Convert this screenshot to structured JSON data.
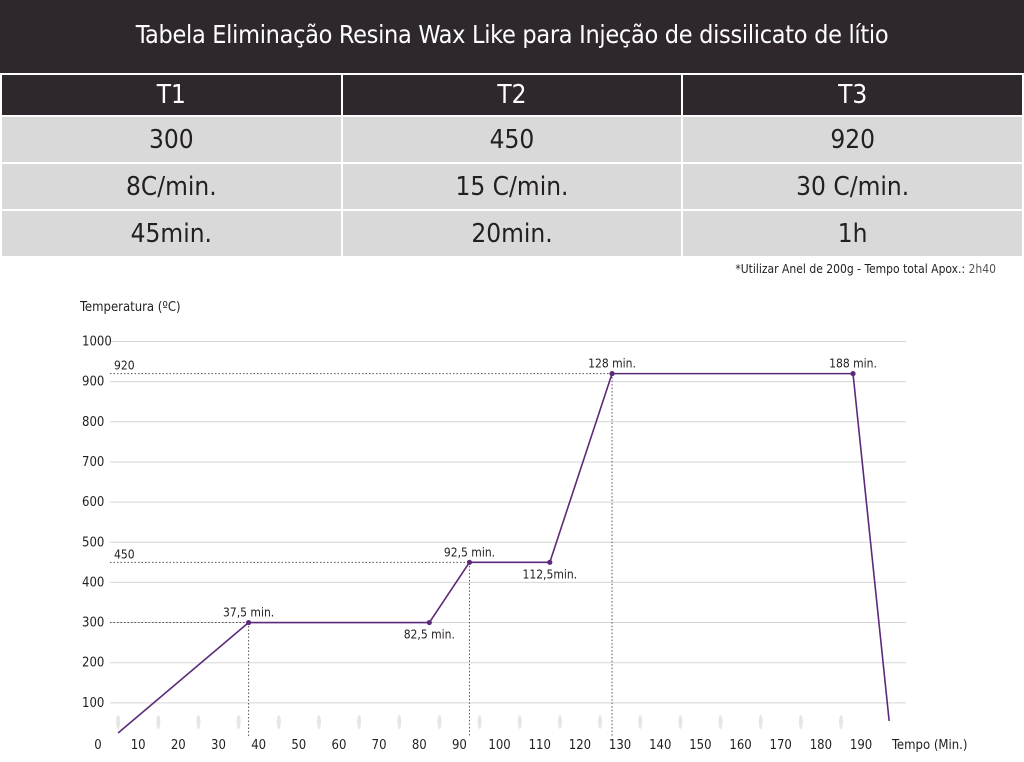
{
  "title": "Tabela Eliminação Resina Wax Like para Injeção de dissilicato de lítio",
  "table": {
    "headers": [
      "T1",
      "T2",
      "T3"
    ],
    "rows": [
      [
        "300",
        "450",
        "920"
      ],
      [
        "8C/min.",
        "15 C/min.",
        "30 C/min."
      ],
      [
        "45min.",
        "20min.",
        "1h"
      ]
    ]
  },
  "note": {
    "text": "*Utilizar Anel de 200g -  Tempo total Apox.:",
    "total": "2h40"
  },
  "colors": {
    "header_bg": "#2e272d",
    "cell_bg": "#d9d9d9",
    "line": "#5b2a7a"
  },
  "chart_data": {
    "type": "line",
    "ylabel": "Temperatura (ºC)",
    "xlabel": "Tempo (Min.)",
    "xlim": [
      0,
      200
    ],
    "ylim": [
      0,
      1000
    ],
    "xticks": [
      0,
      10,
      20,
      30,
      40,
      50,
      60,
      70,
      80,
      90,
      100,
      110,
      120,
      130,
      140,
      150,
      160,
      170,
      180,
      190
    ],
    "yticks": [
      100,
      200,
      300,
      400,
      500,
      600,
      700,
      800,
      900,
      1000
    ],
    "grid": true,
    "series": [
      {
        "x": [
          5,
          37.5,
          82.5,
          92.5,
          112.5,
          128,
          188,
          197
        ],
        "y": [
          25,
          300,
          300,
          450,
          450,
          920,
          920,
          55
        ]
      }
    ],
    "markers": [
      {
        "x": 37.5,
        "y": 300,
        "label": "37,5 min.",
        "pos": "above"
      },
      {
        "x": 82.5,
        "y": 300,
        "label": "82,5 min.",
        "pos": "below"
      },
      {
        "x": 92.5,
        "y": 450,
        "label": "92,5 min.",
        "pos": "above"
      },
      {
        "x": 112.5,
        "y": 450,
        "label": "112,5min.",
        "pos": "below"
      },
      {
        "x": 128,
        "y": 920,
        "label": "128 min.",
        "pos": "above"
      },
      {
        "x": 188,
        "y": 920,
        "label": "188 min.",
        "pos": "above"
      }
    ],
    "reference_levels": [
      {
        "y": 300,
        "label": "",
        "x_end": 37.5
      },
      {
        "y": 450,
        "label": "450",
        "x_end": 92.5
      },
      {
        "y": 920,
        "label": "920",
        "x_end": 128
      }
    ]
  }
}
